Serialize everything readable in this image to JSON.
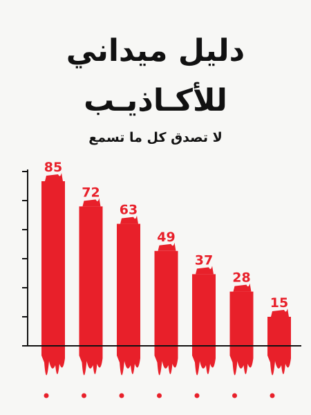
{
  "chart_data": {
    "type": "bar",
    "title_line1": "دليل ميداني",
    "title_line2": "للأكـاذيـب",
    "subtitle": "لا تصدق كل ما تسمع",
    "categories": [
      null,
      null,
      null,
      null,
      null,
      null,
      null
    ],
    "values": [
      85,
      72,
      63,
      49,
      37,
      28,
      15
    ],
    "color": "#e8202a",
    "ylim": [
      0,
      90
    ],
    "yticks": [
      0,
      15,
      30,
      45,
      60,
      75,
      90
    ]
  }
}
